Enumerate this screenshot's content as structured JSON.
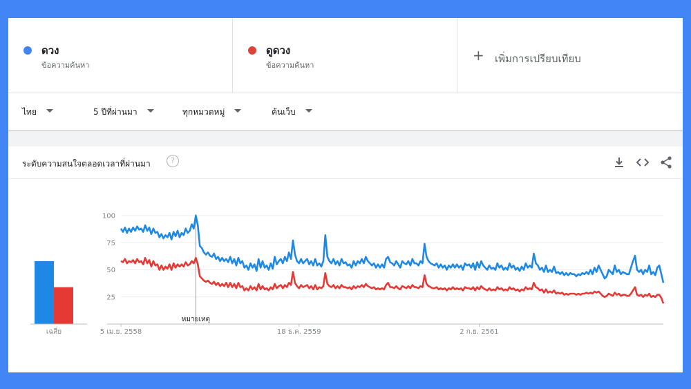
{
  "compare": {
    "terms": [
      {
        "name": "ดวง",
        "sub": "ข้อความค้นหา",
        "color": "#4285f4"
      },
      {
        "name": "ดูดวง",
        "sub": "ข้อความค้นหา",
        "color": "#db4437"
      }
    ],
    "add_label": "เพิ่มการเปรียบเทียบ"
  },
  "filters": {
    "region": "ไทย",
    "time": "5 ปีที่ผ่านมา",
    "category": "ทุกหมวดหมู่",
    "search_type": "ค้นเว็บ"
  },
  "card": {
    "title": "ระดับความสนใจตลอดเวลาที่ผ่านมา",
    "help": "?",
    "icons": [
      "download-icon",
      "embed-icon",
      "share-icon"
    ]
  },
  "chart_data": {
    "type": "line",
    "ylim": [
      0,
      100
    ],
    "yticks": [
      "100",
      "75",
      "50",
      "25"
    ],
    "xticks": [
      {
        "label": "5 เม.ย. 2558",
        "index": 0
      },
      {
        "label": "18 ธ.ค. 2559",
        "index": 88
      },
      {
        "label": "2 ก.ย. 2561",
        "index": 177
      }
    ],
    "annotation": {
      "label": "หมายเหตุ",
      "index": 37
    },
    "average": {
      "label": "เฉลี่ย",
      "values": [
        58,
        34
      ]
    },
    "series": [
      {
        "name": "ดวง",
        "color": "#1e88e5",
        "values": [
          88,
          85,
          89,
          84,
          88,
          85,
          89,
          86,
          90,
          87,
          88,
          85,
          91,
          86,
          89,
          83,
          88,
          84,
          85,
          80,
          83,
          79,
          82,
          80,
          84,
          78,
          85,
          81,
          86,
          80,
          84,
          82,
          88,
          84,
          86,
          92,
          88,
          100,
          91,
          72,
          70,
          66,
          64,
          66,
          63,
          62,
          65,
          60,
          62,
          58,
          61,
          58,
          60,
          57,
          62,
          56,
          60,
          54,
          61,
          56,
          58,
          52,
          54,
          50,
          56,
          52,
          55,
          49,
          60,
          52,
          58,
          52,
          54,
          50,
          56,
          51,
          62,
          55,
          58,
          60,
          56,
          62,
          58,
          66,
          60,
          77,
          64,
          58,
          56,
          60,
          56,
          58,
          60,
          55,
          58,
          54,
          60,
          54,
          56,
          53,
          58,
          82,
          62,
          58,
          56,
          60,
          55,
          58,
          54,
          60,
          56,
          57,
          54,
          55,
          52,
          58,
          54,
          58,
          56,
          60,
          56,
          62,
          58,
          56,
          54,
          56,
          52,
          55,
          52,
          55,
          52,
          60,
          62,
          57,
          56,
          54,
          58,
          55,
          52,
          58,
          56,
          55,
          58,
          54,
          60,
          56,
          56,
          54,
          58,
          56,
          74,
          62,
          58,
          56,
          55,
          54,
          56,
          52,
          55,
          52,
          54,
          50,
          54,
          52,
          55,
          52,
          55,
          52,
          54,
          50,
          56,
          54,
          55,
          52,
          56,
          50,
          57,
          52,
          58,
          54,
          52,
          50,
          54,
          51,
          52,
          50,
          56,
          52,
          54,
          50,
          52,
          50,
          56,
          52,
          54,
          50,
          52,
          49,
          53,
          50,
          56,
          52,
          54,
          52,
          65,
          56,
          54,
          50,
          52,
          48,
          54,
          48,
          50,
          48,
          53,
          47,
          48,
          46,
          48,
          45,
          47,
          45,
          47,
          46,
          46,
          44,
          46,
          45,
          47,
          46,
          48,
          46,
          50,
          46,
          52,
          48,
          54,
          50,
          46,
          42,
          44,
          50,
          48,
          46,
          54,
          48,
          50,
          46,
          48,
          47,
          46,
          46,
          52,
          58,
          63,
          50,
          48,
          50,
          46,
          50,
          48,
          54,
          46,
          48,
          45,
          52,
          54,
          46,
          38
        ]
      },
      {
        "name": "ดูดวง",
        "color": "#e53935",
        "values": [
          58,
          57,
          60,
          56,
          58,
          57,
          59,
          56,
          60,
          57,
          58,
          55,
          61,
          56,
          59,
          53,
          58,
          54,
          55,
          50,
          54,
          50,
          53,
          51,
          55,
          50,
          56,
          52,
          55,
          53,
          55,
          53,
          57,
          54,
          55,
          58,
          56,
          61,
          55,
          44,
          42,
          40,
          39,
          40,
          38,
          37,
          39,
          36,
          38,
          35,
          37,
          35,
          38,
          34,
          38,
          34,
          37,
          33,
          38,
          34,
          35,
          31,
          33,
          31,
          35,
          32,
          34,
          31,
          37,
          32,
          35,
          32,
          33,
          31,
          34,
          32,
          37,
          33,
          35,
          36,
          33,
          36,
          34,
          38,
          36,
          48,
          38,
          35,
          33,
          36,
          34,
          35,
          36,
          33,
          35,
          32,
          36,
          32,
          34,
          33,
          35,
          47,
          37,
          35,
          34,
          36,
          33,
          35,
          33,
          36,
          34,
          34,
          33,
          34,
          32,
          35,
          33,
          35,
          34,
          36,
          34,
          37,
          35,
          34,
          33,
          34,
          32,
          33,
          32,
          33,
          32,
          36,
          38,
          34,
          34,
          33,
          35,
          33,
          32,
          35,
          34,
          33,
          35,
          33,
          36,
          34,
          34,
          33,
          35,
          34,
          45,
          37,
          35,
          34,
          33,
          33,
          34,
          32,
          33,
          32,
          33,
          31,
          33,
          32,
          34,
          32,
          33,
          32,
          33,
          31,
          34,
          33,
          33,
          32,
          34,
          31,
          34,
          32,
          35,
          33,
          32,
          31,
          33,
          31,
          32,
          31,
          34,
          32,
          33,
          31,
          32,
          31,
          34,
          32,
          33,
          31,
          32,
          30,
          32,
          31,
          34,
          32,
          33,
          32,
          38,
          34,
          33,
          31,
          32,
          29,
          32,
          29,
          30,
          29,
          31,
          28,
          29,
          28,
          29,
          27,
          28,
          27,
          28,
          28,
          28,
          27,
          28,
          27,
          28,
          28,
          29,
          28,
          29,
          28,
          30,
          29,
          30,
          28,
          26,
          25,
          26,
          28,
          27,
          26,
          29,
          27,
          28,
          26,
          27,
          27,
          26,
          26,
          28,
          31,
          34,
          27,
          26,
          27,
          25,
          27,
          26,
          28,
          25,
          26,
          25,
          27,
          27,
          24,
          19
        ]
      }
    ]
  }
}
